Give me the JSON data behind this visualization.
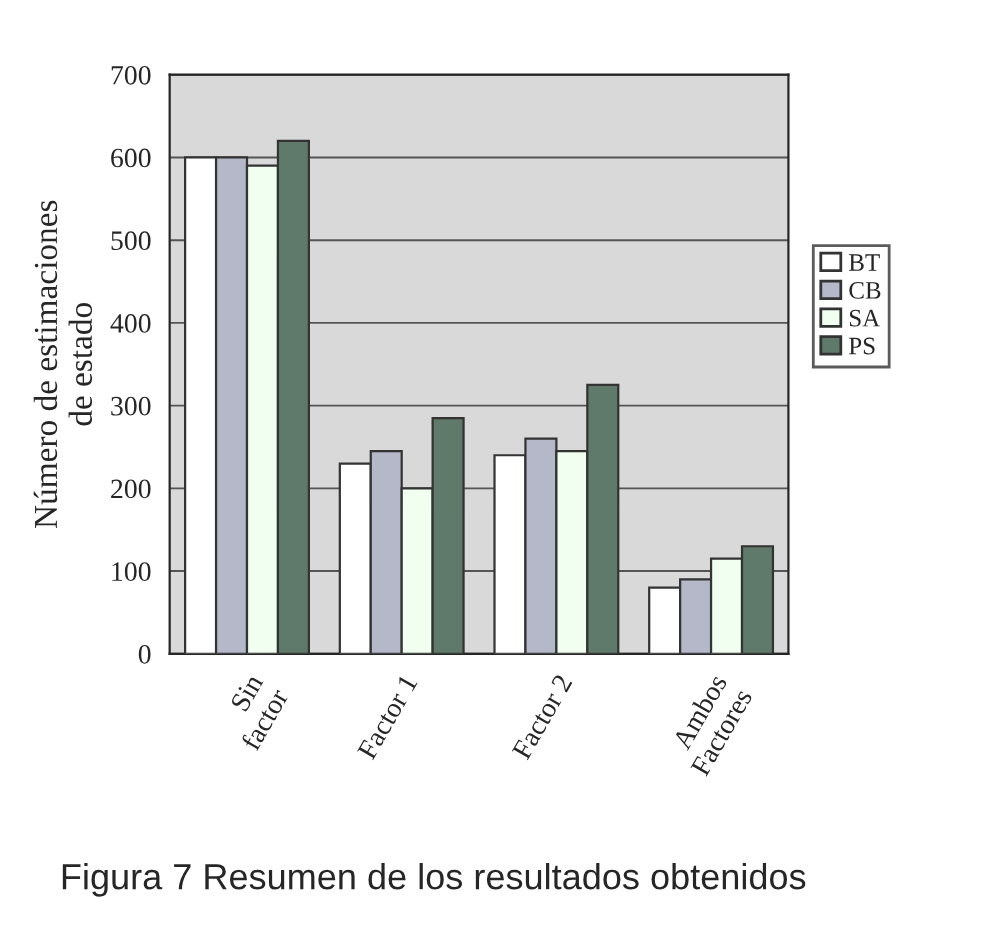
{
  "chart_data": {
    "type": "bar",
    "categories": [
      "Sin\nfactor",
      "Factor 1",
      "Factor 2",
      "Ambos\nFactores"
    ],
    "series": [
      {
        "name": "BT",
        "color": "#ffffff",
        "values": [
          600,
          230,
          240,
          80
        ]
      },
      {
        "name": "CB",
        "color": "#b4b8c8",
        "values": [
          600,
          245,
          260,
          90
        ]
      },
      {
        "name": "SA",
        "color": "#f0fff0",
        "values": [
          590,
          200,
          245,
          115
        ]
      },
      {
        "name": "PS",
        "color": "#5f7a6a",
        "values": [
          620,
          285,
          325,
          130
        ]
      }
    ],
    "ylabel": "Número de estimaciones\nde estado",
    "ylim": [
      0,
      700
    ],
    "yticks": [
      0,
      100,
      200,
      300,
      400,
      500,
      600,
      700
    ],
    "grid": "y",
    "legend": "right",
    "annotations": [
      "Figura 7 Resumen de los resultados obtenidos"
    ]
  }
}
